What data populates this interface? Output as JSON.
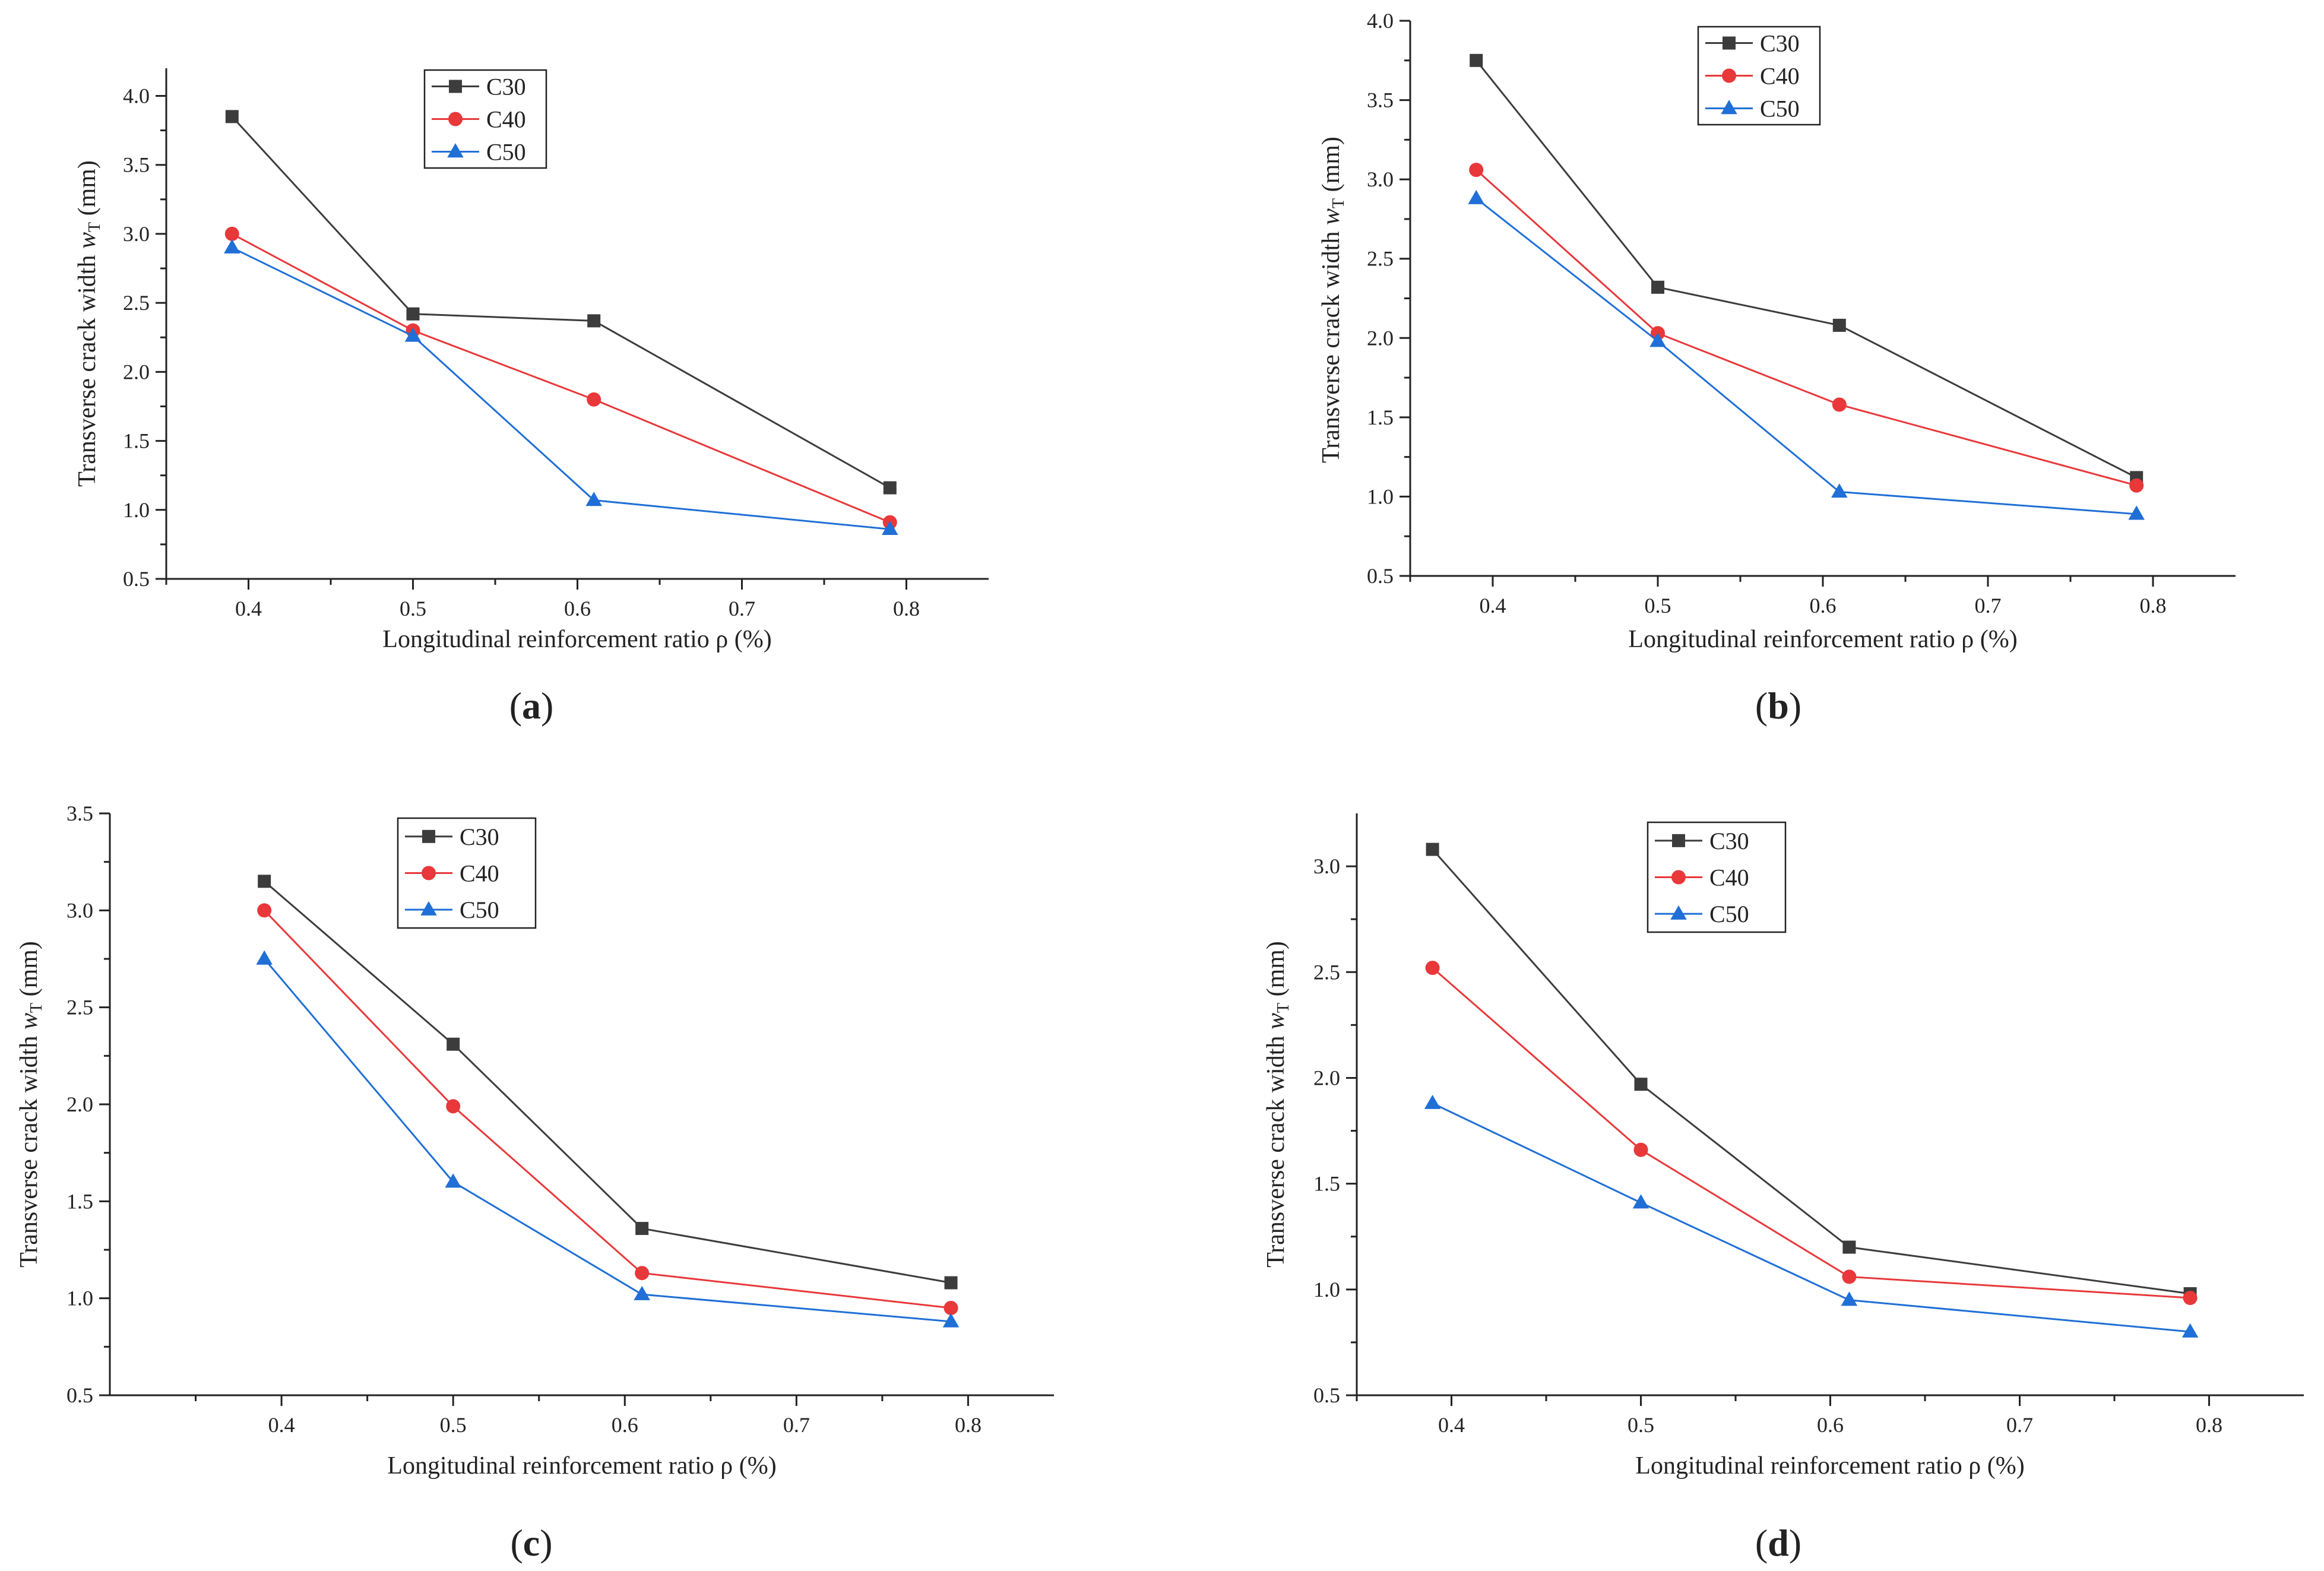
{
  "colors": {
    "C30": "#3c3c3c",
    "C40": "#e8383a",
    "C50": "#1f6fd6",
    "axis": "#222222"
  },
  "chart_data": [
    {
      "type": "line",
      "panel_label": "a",
      "xlabel": "Longitudinal reinforcement ratio ρ (%)",
      "ylabel": "Transverse crack width w_T (mm)",
      "ylabel_main": "Transverse crack width ",
      "ylabel_symbol": "w",
      "ylabel_subscript": "T",
      "ylabel_unit": " (mm)",
      "xlim": [
        0.35,
        0.85
      ],
      "ylim": [
        0.5,
        4.2
      ],
      "xticks": [
        "0.4",
        "0.5",
        "0.6",
        "0.7",
        "0.8"
      ],
      "xtick_values": [
        0.4,
        0.5,
        0.6,
        0.7,
        0.8
      ],
      "yticks": [
        "0.5",
        "1.0",
        "1.5",
        "2.0",
        "2.5",
        "3.0",
        "3.5",
        "4.0"
      ],
      "ytick_values": [
        0.5,
        1.0,
        1.5,
        2.0,
        2.5,
        3.0,
        3.5,
        4.0
      ],
      "legend_position": "top-center",
      "x": [
        0.39,
        0.5,
        0.61,
        0.79
      ],
      "series": [
        {
          "name": "C30",
          "marker": "square",
          "values": [
            3.85,
            2.42,
            2.37,
            1.16
          ]
        },
        {
          "name": "C40",
          "marker": "circle",
          "values": [
            3.0,
            2.3,
            1.8,
            0.91
          ]
        },
        {
          "name": "C50",
          "marker": "triangle",
          "values": [
            2.9,
            2.26,
            1.07,
            0.86
          ]
        }
      ]
    },
    {
      "type": "line",
      "panel_label": "b",
      "xlabel": "Longitudinal reinforcement ratio ρ (%)",
      "ylabel": "Transverse crack width w_T (mm)",
      "ylabel_main": "Transverse crack width ",
      "ylabel_symbol": "w",
      "ylabel_subscript": "T",
      "ylabel_unit": " (mm)",
      "xlim": [
        0.35,
        0.85
      ],
      "ylim": [
        0.5,
        4.0
      ],
      "xticks": [
        "0.4",
        "0.5",
        "0.6",
        "0.7",
        "0.8"
      ],
      "xtick_values": [
        0.4,
        0.5,
        0.6,
        0.7,
        0.8
      ],
      "yticks": [
        "0.5",
        "1.0",
        "1.5",
        "2.0",
        "2.5",
        "3.0",
        "3.5",
        "4.0"
      ],
      "ytick_values": [
        0.5,
        1.0,
        1.5,
        2.0,
        2.5,
        3.0,
        3.5,
        4.0
      ],
      "legend_position": "top-center",
      "x": [
        0.39,
        0.5,
        0.61,
        0.79
      ],
      "series": [
        {
          "name": "C30",
          "marker": "square",
          "values": [
            3.75,
            2.32,
            2.08,
            1.12
          ]
        },
        {
          "name": "C40",
          "marker": "circle",
          "values": [
            3.06,
            2.03,
            1.58,
            1.07
          ]
        },
        {
          "name": "C50",
          "marker": "triangle",
          "values": [
            2.88,
            1.98,
            1.03,
            0.89
          ]
        }
      ]
    },
    {
      "type": "line",
      "panel_label": "c",
      "xlabel": "Longitudinal reinforcement ratio ρ (%)",
      "ylabel": "Transverse crack width w_T (mm)",
      "ylabel_main": "Transverse crack width ",
      "ylabel_symbol": "w",
      "ylabel_subscript": "T",
      "ylabel_unit": " (mm)",
      "xlim": [
        0.3,
        0.85
      ],
      "ylim": [
        0.5,
        3.5
      ],
      "xticks": [
        "0.4",
        "0.5",
        "0.6",
        "0.7",
        "0.8"
      ],
      "xtick_values": [
        0.4,
        0.5,
        0.6,
        0.7,
        0.8
      ],
      "yticks": [
        "0.5",
        "1.0",
        "1.5",
        "2.0",
        "2.5",
        "3.0",
        "3.5"
      ],
      "ytick_values": [
        0.5,
        1.0,
        1.5,
        2.0,
        2.5,
        3.0,
        3.5
      ],
      "legend_position": "top-center",
      "x": [
        0.39,
        0.5,
        0.61,
        0.79
      ],
      "series": [
        {
          "name": "C30",
          "marker": "square",
          "values": [
            3.15,
            2.31,
            1.36,
            1.08
          ]
        },
        {
          "name": "C40",
          "marker": "circle",
          "values": [
            3.0,
            1.99,
            1.13,
            0.95
          ]
        },
        {
          "name": "C50",
          "marker": "triangle",
          "values": [
            2.75,
            1.6,
            1.02,
            0.88
          ]
        }
      ]
    },
    {
      "type": "line",
      "panel_label": "d",
      "xlabel": "Longitudinal reinforcement ratio ρ (%)",
      "ylabel": "Transverse crack width w_T (mm)",
      "ylabel_main": "Transverse crack width ",
      "ylabel_symbol": "w",
      "ylabel_subscript": "T",
      "ylabel_unit": " (mm)",
      "xlim": [
        0.35,
        0.85
      ],
      "ylim": [
        0.5,
        3.25
      ],
      "xticks": [
        "0.4",
        "0.5",
        "0.6",
        "0.7",
        "0.8"
      ],
      "xtick_values": [
        0.4,
        0.5,
        0.6,
        0.7,
        0.8
      ],
      "yticks": [
        "0.5",
        "1.0",
        "1.5",
        "2.0",
        "2.5",
        "3.0"
      ],
      "ytick_values": [
        0.5,
        1.0,
        1.5,
        2.0,
        2.5,
        3.0
      ],
      "legend_position": "top-center",
      "x": [
        0.39,
        0.5,
        0.61,
        0.79
      ],
      "series": [
        {
          "name": "C30",
          "marker": "square",
          "values": [
            3.08,
            1.97,
            1.2,
            0.98
          ]
        },
        {
          "name": "C40",
          "marker": "circle",
          "values": [
            2.52,
            1.66,
            1.06,
            0.96
          ]
        },
        {
          "name": "C50",
          "marker": "triangle",
          "values": [
            1.88,
            1.41,
            0.95,
            0.8
          ]
        }
      ]
    }
  ]
}
